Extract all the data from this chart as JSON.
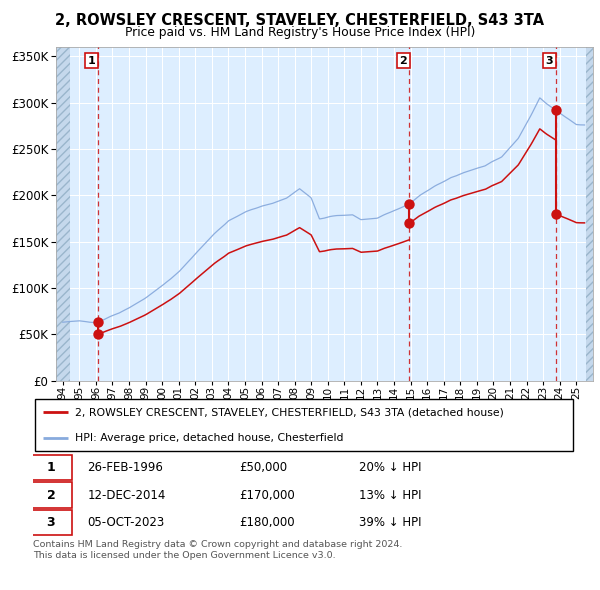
{
  "title": "2, ROWSLEY CRESCENT, STAVELEY, CHESTERFIELD, S43 3TA",
  "subtitle": "Price paid vs. HM Land Registry's House Price Index (HPI)",
  "ylim": [
    0,
    360000
  ],
  "xlim_start": 1993.58,
  "xlim_end": 2026.0,
  "hatch_left_end": 1994.42,
  "hatch_right_start": 2025.58,
  "yticks": [
    0,
    50000,
    100000,
    150000,
    200000,
    250000,
    300000,
    350000
  ],
  "sale_dates": [
    1996.12,
    2014.92,
    2023.75
  ],
  "sale_prices": [
    50000,
    170000,
    180000
  ],
  "sale_labels": [
    "1",
    "2",
    "3"
  ],
  "hpi_line_color": "#88aadd",
  "price_line_color": "#cc1111",
  "bg_color": "#ddeeff",
  "hatch_bg_color": "#c5d8ec",
  "legend_label_red": "2, ROWSLEY CRESCENT, STAVELEY, CHESTERFIELD, S43 3TA (detached house)",
  "legend_label_blue": "HPI: Average price, detached house, Chesterfield",
  "table_rows": [
    [
      "1",
      "26-FEB-1996",
      "£50,000",
      "20% ↓ HPI"
    ],
    [
      "2",
      "12-DEC-2014",
      "£170,000",
      "13% ↓ HPI"
    ],
    [
      "3",
      "05-OCT-2023",
      "£180,000",
      "39% ↓ HPI"
    ]
  ],
  "footer": "Contains HM Land Registry data © Crown copyright and database right 2024.\nThis data is licensed under the Open Government Licence v3.0.",
  "hpi_anchors_years": [
    1994.0,
    1995.0,
    1996.1,
    1997.0,
    1998.0,
    1999.0,
    2000.0,
    2001.0,
    2002.0,
    2003.0,
    2004.0,
    2005.0,
    2006.0,
    2007.5,
    2008.3,
    2009.0,
    2009.5,
    2010.5,
    2011.5,
    2012.0,
    2013.0,
    2014.0,
    2014.92,
    2015.5,
    2016.5,
    2017.5,
    2018.5,
    2019.5,
    2020.5,
    2021.5,
    2022.3,
    2022.8,
    2023.2,
    2023.75,
    2024.3,
    2025.0
  ],
  "hpi_anchors_vals": [
    63000,
    65000,
    62500,
    70000,
    79000,
    90000,
    103000,
    118000,
    138000,
    158000,
    175000,
    185000,
    192000,
    200000,
    210000,
    200000,
    178000,
    182000,
    183000,
    178000,
    180000,
    188000,
    195000,
    203000,
    213000,
    222000,
    230000,
    235000,
    245000,
    265000,
    290000,
    308000,
    302000,
    295000,
    288000,
    280000
  ]
}
